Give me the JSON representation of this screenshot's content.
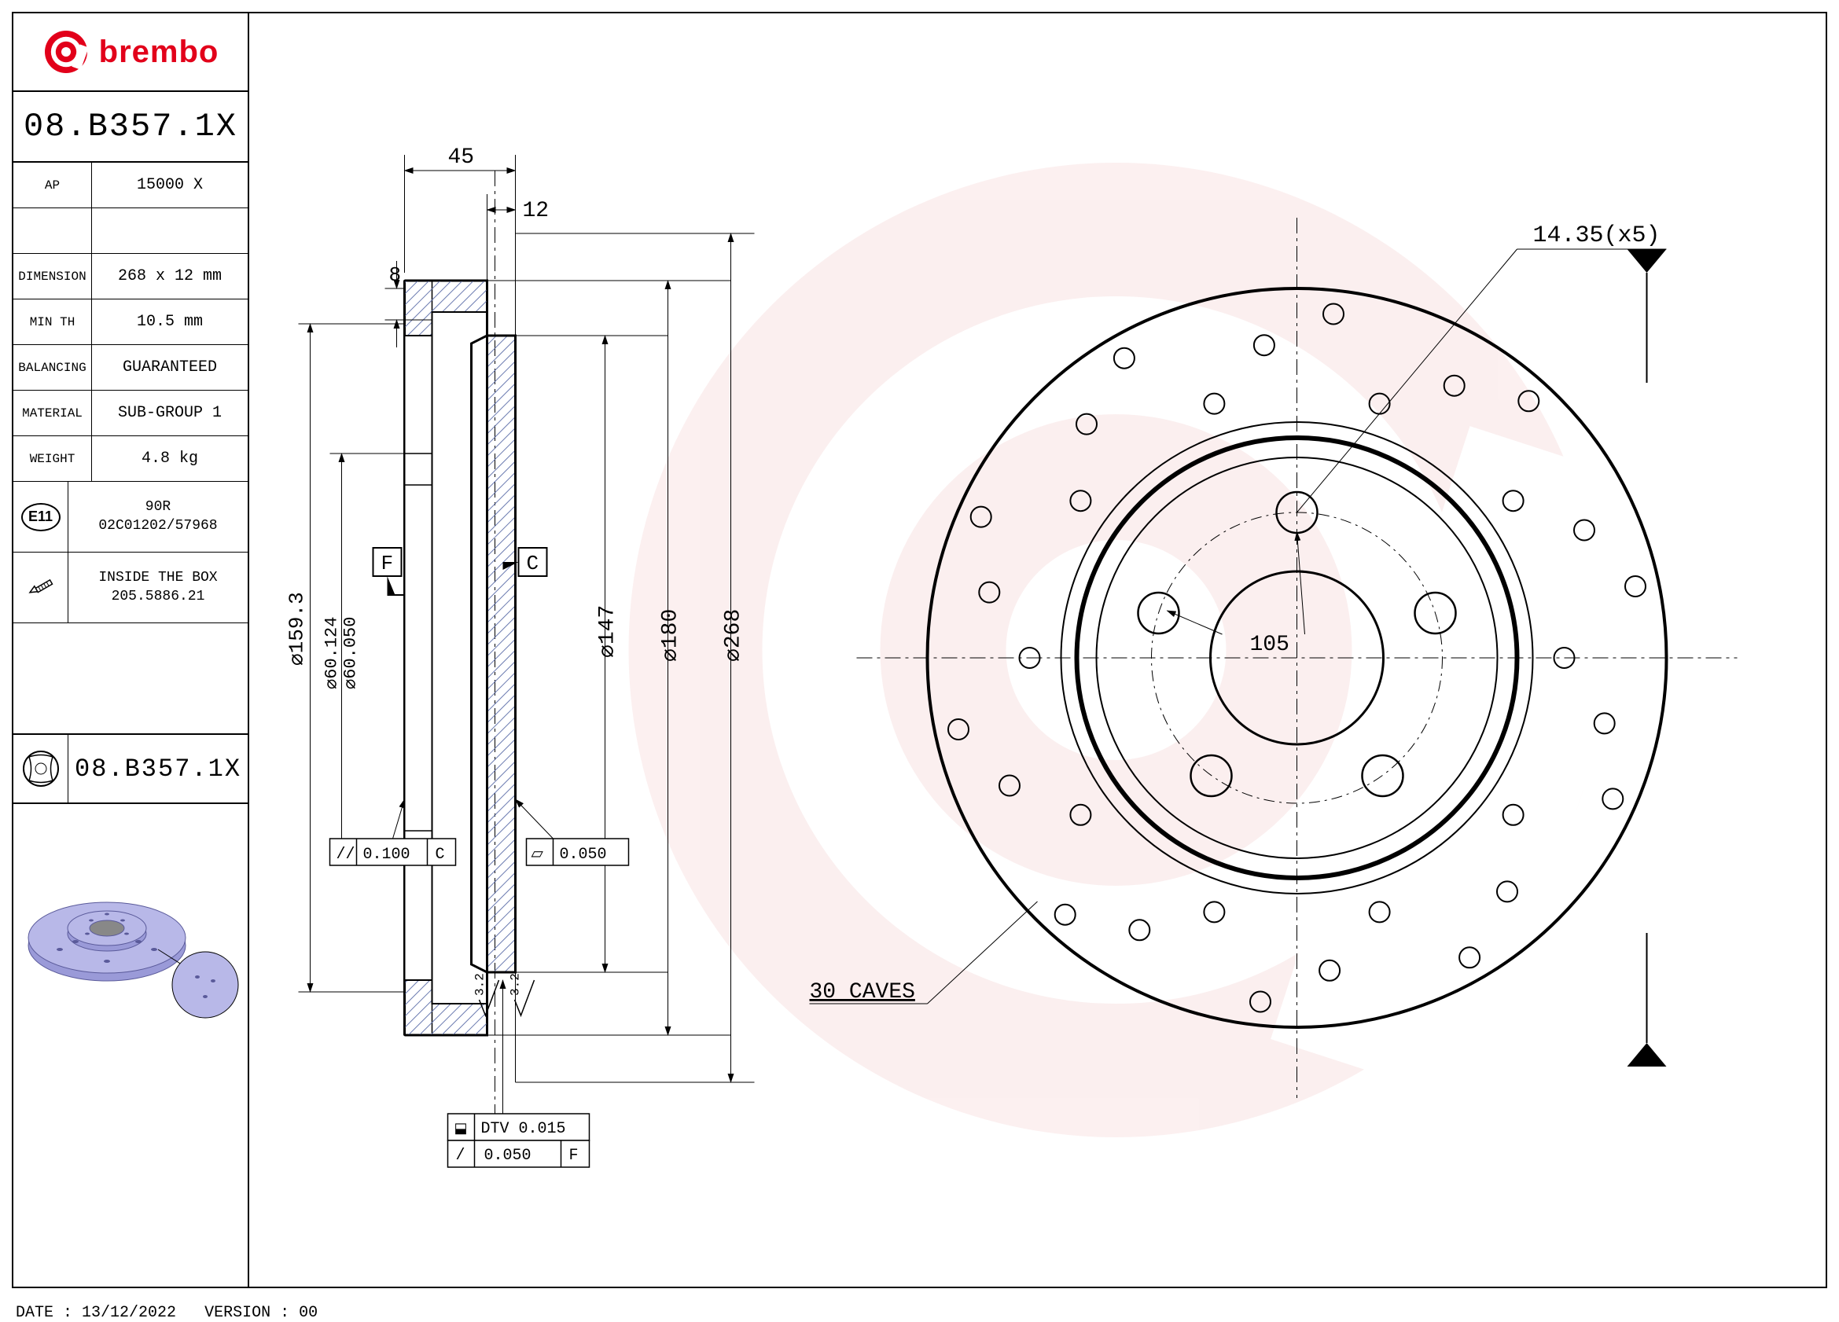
{
  "brand": {
    "name": "brembo",
    "logo_color": "#e2001a"
  },
  "part_number": "08.B357.1X",
  "specs": {
    "ap_label": "AP",
    "ap_value": "15000 X",
    "dimension_label": "DIMENSION",
    "dimension_value": "268 x 12 mm",
    "minth_label": "MIN TH",
    "minth_value": "10.5 mm",
    "balancing_label": "BALANCING",
    "balancing_value": "GUARANTEED",
    "material_label": "MATERIAL",
    "material_value": "SUB-GROUP 1",
    "weight_label": "WEIGHT",
    "weight_value": "4.8 kg"
  },
  "certification": {
    "badge": "E11",
    "line1": "90R",
    "line2": "02C01202/57968"
  },
  "box": {
    "line1": "INSIDE THE BOX",
    "line2": "205.5886.21"
  },
  "disc_label": "08.B357.1X",
  "drawing": {
    "dims": {
      "d45": "45",
      "d12": "12",
      "d8": "8",
      "d147": "⌀147",
      "d180": "⌀180",
      "d268": "⌀268",
      "d159_3": "⌀159.3",
      "d60_124": "⌀60.124",
      "d60_050": "⌀60.050",
      "d105": "105",
      "hole": "14.35(x5)"
    },
    "datums": {
      "F": "F",
      "C": "C"
    },
    "gdt": {
      "parallel": "// 0.100 C",
      "flat1": "⬠ 0.050",
      "dtv": "DTV 0.015",
      "runout": "/ 0.050 F"
    },
    "caves": "30 CAVES",
    "surface_finish": "3.2",
    "colors": {
      "dimension_line": "#000000",
      "hatch": "#b8c4e8",
      "watermark": "#f5d4d4",
      "render_purple": "#9a9ad8"
    }
  },
  "footer": {
    "date_label": "DATE :",
    "date": "13/12/2022",
    "version_label": "VERSION :",
    "version": "00"
  }
}
